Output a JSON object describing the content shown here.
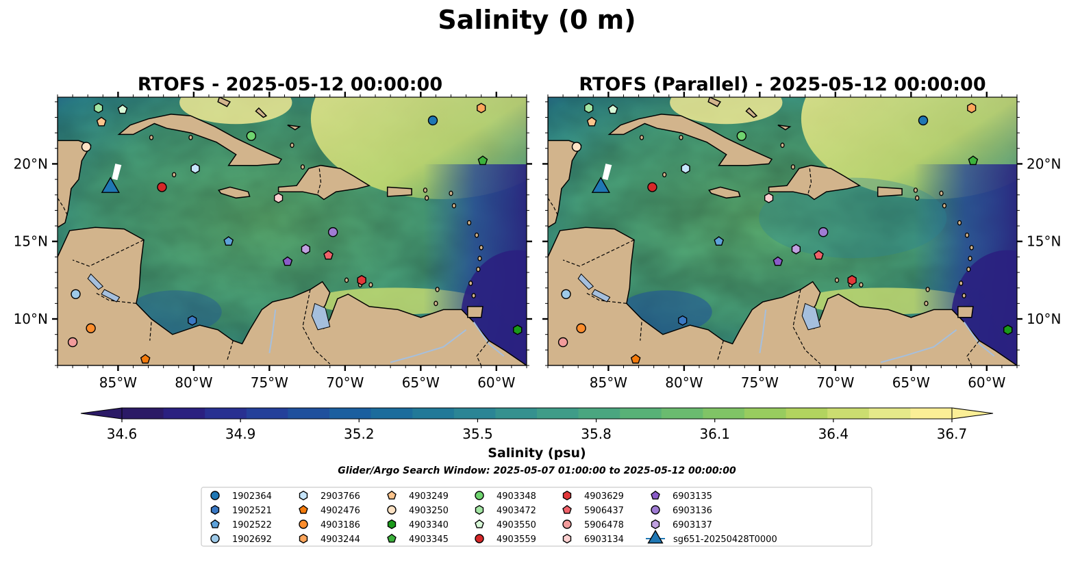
{
  "figure": {
    "title": "Salinity (0 m)",
    "window_text": "Glider/Argo Search Window: 2025-05-07 01:00:00 to 2025-05-12 00:00:00"
  },
  "panels": [
    {
      "title": "RTOFS - 2025-05-12 00:00:00",
      "lat_labels_side": "left"
    },
    {
      "title": "RTOFS (Parallel) - 2025-05-12 00:00:00",
      "lat_labels_side": "right"
    }
  ],
  "map": {
    "lon_range": [
      -89,
      -58
    ],
    "lat_range": [
      7,
      24.3
    ],
    "lon_ticks": [
      -85,
      -80,
      -75,
      -70,
      -65,
      -60
    ],
    "lon_tick_labels": [
      "85°W",
      "80°W",
      "75°W",
      "70°W",
      "65°W",
      "60°W"
    ],
    "lat_ticks": [
      10,
      15,
      20
    ],
    "lat_tick_labels": [
      "10°N",
      "15°N",
      "20°N"
    ],
    "land_color": "#d2b48c",
    "lake_color": "#a5bfdd"
  },
  "colorbar": {
    "label": "Salinity (psu)",
    "min": 34.6,
    "max": 36.7,
    "extend": "both",
    "ticks": [
      34.6,
      34.9,
      35.2,
      35.5,
      35.8,
      36.1,
      36.4,
      36.7
    ],
    "tick_labels": [
      "34.6",
      "34.9",
      "35.2",
      "35.5",
      "35.8",
      "36.1",
      "36.4",
      "36.7"
    ],
    "colors": [
      "#2b1a66",
      "#2a2080",
      "#283091",
      "#24409a",
      "#1f509d",
      "#1b5f9f",
      "#1b6c9c",
      "#217998",
      "#2b8595",
      "#35918f",
      "#3f9c88",
      "#4aa680",
      "#58b177",
      "#6abb6f",
      "#80c466",
      "#98cc5f",
      "#b2d35f",
      "#cbdd70",
      "#e5e98a",
      "#fbef96"
    ]
  },
  "legend": {
    "entries": [
      {
        "label": "1902364",
        "color": "#1f77b4",
        "marker": "circle"
      },
      {
        "label": "1902521",
        "color": "#3a78c4",
        "marker": "hexagon"
      },
      {
        "label": "1902522",
        "color": "#5ea2da",
        "marker": "pentagon"
      },
      {
        "label": "1902692",
        "color": "#9ecae9",
        "marker": "circle"
      },
      {
        "label": "2903766",
        "color": "#c6e5fb",
        "marker": "hexagon"
      },
      {
        "label": "4902476",
        "color": "#f47b0c",
        "marker": "pentagon"
      },
      {
        "label": "4903186",
        "color": "#fd8d2c",
        "marker": "circle"
      },
      {
        "label": "4903244",
        "color": "#fda65c",
        "marker": "hexagon"
      },
      {
        "label": "4903249",
        "color": "#fdc48c",
        "marker": "pentagon"
      },
      {
        "label": "4903250",
        "color": "#fde2c4",
        "marker": "circle"
      },
      {
        "label": "4903340",
        "color": "#1a9a1a",
        "marker": "hexagon"
      },
      {
        "label": "4903345",
        "color": "#3cb23c",
        "marker": "pentagon"
      },
      {
        "label": "4903348",
        "color": "#6fd46f",
        "marker": "circle"
      },
      {
        "label": "4903472",
        "color": "#a4e6a4",
        "marker": "hexagon"
      },
      {
        "label": "4903550",
        "color": "#d8f8d8",
        "marker": "pentagon"
      },
      {
        "label": "4903559",
        "color": "#d62728",
        "marker": "circle"
      },
      {
        "label": "4903629",
        "color": "#e2383a",
        "marker": "hexagon"
      },
      {
        "label": "5906437",
        "color": "#f0626a",
        "marker": "pentagon"
      },
      {
        "label": "5906478",
        "color": "#f29c9c",
        "marker": "circle"
      },
      {
        "label": "6903134",
        "color": "#fcd0d0",
        "marker": "hexagon"
      },
      {
        "label": "6903135",
        "color": "#8a5cc8",
        "marker": "pentagon"
      },
      {
        "label": "6903136",
        "color": "#a07cd4",
        "marker": "circle"
      },
      {
        "label": "6903137",
        "color": "#c0a0e0",
        "marker": "hexagon"
      },
      {
        "label": "sg651-20250428T0000",
        "color": "#1f77b4",
        "marker": "triangle"
      }
    ]
  }
}
